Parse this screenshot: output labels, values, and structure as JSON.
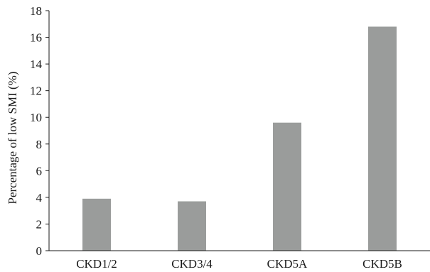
{
  "chart_data": {
    "type": "bar",
    "title": "",
    "xlabel": "",
    "ylabel": "Percentage of low SMI (%)",
    "categories": [
      "CKD1/2",
      "CKD3/4",
      "CKD5A",
      "CKD5B"
    ],
    "values": [
      3.9,
      3.7,
      9.6,
      16.8
    ],
    "ylim": [
      0,
      18
    ],
    "yticks": [
      0,
      2,
      4,
      6,
      8,
      10,
      12,
      14,
      16,
      18
    ],
    "bar_color": "#9a9c9b",
    "axis_color": "#1a1a1a",
    "grid": false,
    "legend": "none"
  }
}
